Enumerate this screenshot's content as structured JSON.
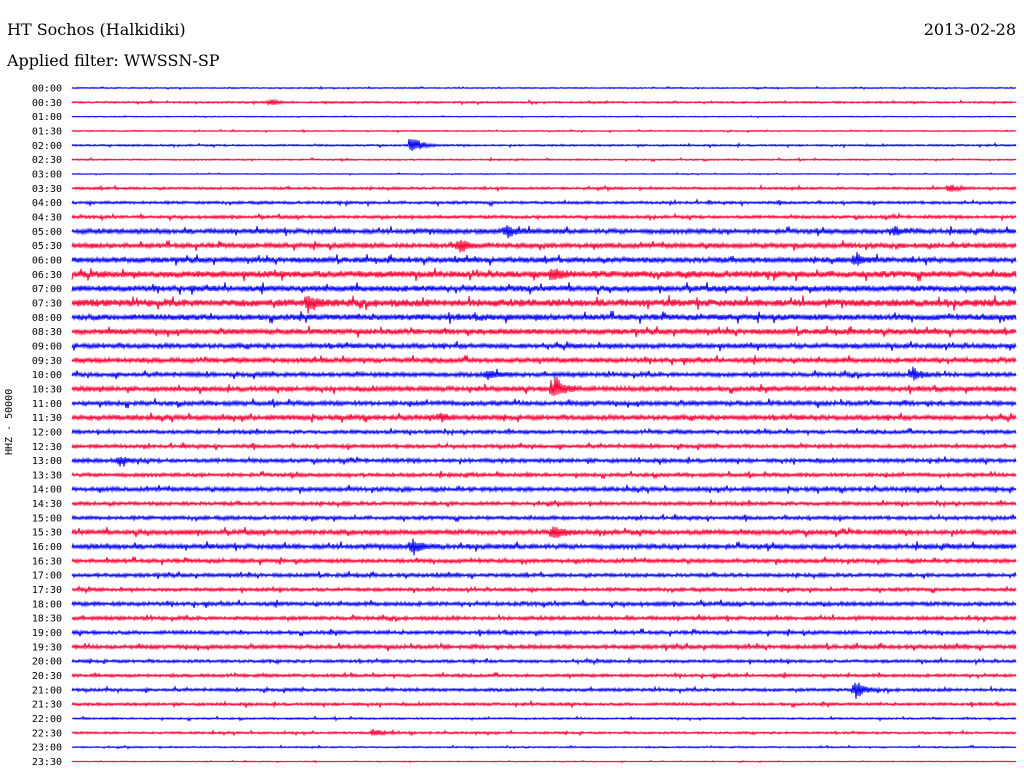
{
  "header": {
    "station": "HT Sochos (Halkidiki)",
    "date": "2013-02-28",
    "filter": "Applied filter: WWSSN-SP"
  },
  "channel_label": "HHZ - 50000",
  "colors": {
    "even_trace": "#0000ff",
    "odd_trace": "#ff0033",
    "background": "#ffffff"
  },
  "chart_data": {
    "type": "line",
    "title": "HT Sochos (Halkidiki)",
    "subtitle": "Applied filter: WWSSN-SP",
    "ylabel": "HHZ - 50000",
    "categories": [
      "00:00",
      "00:30",
      "01:00",
      "01:30",
      "02:00",
      "02:30",
      "03:00",
      "03:30",
      "04:00",
      "04:30",
      "05:00",
      "05:30",
      "06:00",
      "06:30",
      "07:00",
      "07:30",
      "08:00",
      "08:30",
      "09:00",
      "09:30",
      "10:00",
      "10:30",
      "11:00",
      "11:30",
      "12:00",
      "12:30",
      "13:00",
      "13:30",
      "14:00",
      "14:30",
      "15:00",
      "15:30",
      "16:00",
      "16:30",
      "17:00",
      "17:30",
      "18:00",
      "18:30",
      "19:00",
      "19:30",
      "20:00",
      "20:30",
      "21:00",
      "21:30",
      "22:00",
      "22:30",
      "23:00",
      "23:30"
    ],
    "noise_level": [
      0.4,
      0.6,
      0.3,
      0.4,
      0.6,
      0.5,
      0.3,
      0.8,
      0.9,
      1.0,
      1.6,
      1.6,
      1.8,
      2.2,
      2.0,
      2.4,
      2.0,
      1.8,
      1.6,
      1.6,
      1.4,
      1.6,
      1.5,
      1.6,
      1.2,
      1.2,
      1.3,
      1.2,
      1.4,
      1.2,
      1.2,
      1.6,
      1.6,
      1.3,
      1.2,
      1.1,
      1.3,
      1.2,
      1.2,
      1.3,
      1.0,
      1.0,
      1.0,
      0.9,
      0.6,
      0.7,
      0.5,
      0.3
    ],
    "events": [
      {
        "trace": "00:30",
        "x": 0.21,
        "amplitude": 3
      },
      {
        "trace": "02:00",
        "x": 0.36,
        "amplitude": 12
      },
      {
        "trace": "03:30",
        "x": 0.93,
        "amplitude": 5
      },
      {
        "trace": "05:00",
        "x": 0.46,
        "amplitude": 6
      },
      {
        "trace": "05:00",
        "x": 0.87,
        "amplitude": 5
      },
      {
        "trace": "05:30",
        "x": 0.41,
        "amplitude": 7
      },
      {
        "trace": "06:00",
        "x": 0.83,
        "amplitude": 5
      },
      {
        "trace": "06:30",
        "x": 0.51,
        "amplitude": 7
      },
      {
        "trace": "07:30",
        "x": 0.25,
        "amplitude": 9
      },
      {
        "trace": "10:00",
        "x": 0.44,
        "amplitude": 5
      },
      {
        "trace": "10:00",
        "x": 0.89,
        "amplitude": 7
      },
      {
        "trace": "10:30",
        "x": 0.51,
        "amplitude": 14
      },
      {
        "trace": "11:30",
        "x": 0.39,
        "amplitude": 4
      },
      {
        "trace": "13:00",
        "x": 0.05,
        "amplitude": 6
      },
      {
        "trace": "15:30",
        "x": 0.51,
        "amplitude": 8
      },
      {
        "trace": "16:00",
        "x": 0.36,
        "amplitude": 9
      },
      {
        "trace": "21:00",
        "x": 0.83,
        "amplitude": 10
      },
      {
        "trace": "22:30",
        "x": 0.32,
        "amplitude": 4
      }
    ]
  }
}
